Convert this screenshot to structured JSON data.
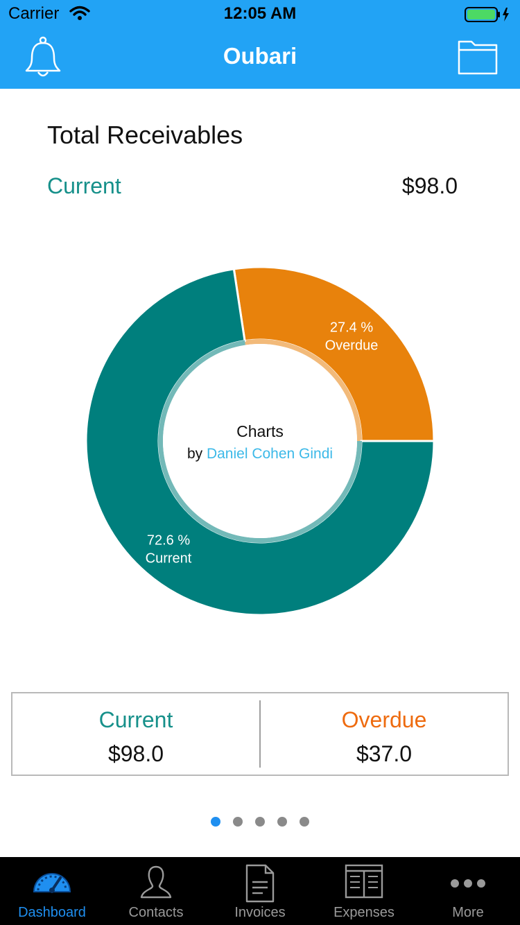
{
  "status_bar": {
    "carrier": "Carrier",
    "time": "12:05 AM"
  },
  "nav": {
    "title": "Oubari",
    "left_icon": "bell-icon",
    "right_icon": "folder-icon"
  },
  "header": {
    "title": "Total Receivables",
    "current_label": "Current",
    "current_value": "$98.0"
  },
  "chart_data": {
    "type": "pie",
    "variant": "donut",
    "series": [
      {
        "name": "Overdue",
        "percent": 27.4,
        "label_top": "27.4 %",
        "label_bottom": "Overdue",
        "color": "#e8820c"
      },
      {
        "name": "Current",
        "percent": 72.6,
        "label_top": "72.6 %",
        "label_bottom": "Current",
        "color": "#007f7d"
      }
    ],
    "center_text_line1": "Charts",
    "center_text_by": "by",
    "center_text_author": "Daniel Cohen Gindi",
    "author_color": "#3cb9e8"
  },
  "summary": {
    "current": {
      "label": "Current",
      "value": "$98.0"
    },
    "overdue": {
      "label": "Overdue",
      "value": "$37.0"
    }
  },
  "pager": {
    "count": 5,
    "active": 0
  },
  "tabs": [
    {
      "label": "Dashboard",
      "icon": "speedometer-icon",
      "active": true
    },
    {
      "label": "Contacts",
      "icon": "person-icon",
      "active": false
    },
    {
      "label": "Invoices",
      "icon": "document-icon",
      "active": false
    },
    {
      "label": "Expenses",
      "icon": "ledger-icon",
      "active": false
    },
    {
      "label": "More",
      "icon": "more-dots-icon",
      "active": false
    }
  ],
  "colors": {
    "nav_bar": "#22a3f5",
    "current": "#16908a",
    "overdue": "#ee6b0f",
    "tab_active": "#1f8ff0"
  }
}
